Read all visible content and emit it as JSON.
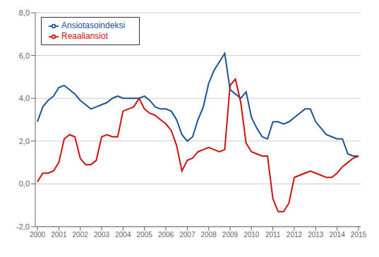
{
  "chart_data": {
    "type": "line",
    "x": [
      2000,
      2000.25,
      2000.5,
      2000.75,
      2001,
      2001.25,
      2001.5,
      2001.75,
      2002,
      2002.25,
      2002.5,
      2002.75,
      2003,
      2003.25,
      2003.5,
      2003.75,
      2004,
      2004.25,
      2004.5,
      2004.75,
      2005,
      2005.25,
      2005.5,
      2005.75,
      2006,
      2006.25,
      2006.5,
      2006.75,
      2007,
      2007.25,
      2007.5,
      2007.75,
      2008,
      2008.25,
      2008.5,
      2008.75,
      2009,
      2009.25,
      2009.5,
      2009.75,
      2010,
      2010.25,
      2010.5,
      2010.75,
      2011,
      2011.25,
      2011.5,
      2011.75,
      2012,
      2012.25,
      2012.5,
      2012.75,
      2013,
      2013.25,
      2013.5,
      2013.75,
      2014,
      2014.25,
      2014.5,
      2014.75,
      2015
    ],
    "xlim": [
      1999.9,
      2015.1
    ],
    "xticks": [
      2000,
      2001,
      2002,
      2003,
      2004,
      2005,
      2006,
      2007,
      2008,
      2009,
      2010,
      2011,
      2012,
      2013,
      2014,
      2015
    ],
    "ylim": [
      -2.0,
      8.0
    ],
    "yticks": [
      {
        "value": -2.0,
        "label": "-2,0"
      },
      {
        "value": 0.0,
        "label": "0,0"
      },
      {
        "value": 2.0,
        "label": "2,0"
      },
      {
        "value": 4.0,
        "label": "4,0"
      },
      {
        "value": 6.0,
        "label": "6,0"
      },
      {
        "value": 8.0,
        "label": "8,0"
      }
    ],
    "grid": "y",
    "legend": "upper left",
    "series": [
      {
        "name": "Ansiotasoindeksi",
        "color": "#1a5296",
        "values": [
          2.9,
          3.6,
          3.9,
          4.1,
          4.5,
          4.6,
          4.4,
          4.2,
          3.9,
          3.7,
          3.5,
          3.6,
          3.7,
          3.8,
          4.0,
          4.1,
          4.0,
          4.0,
          4.0,
          4.0,
          4.1,
          3.9,
          3.6,
          3.5,
          3.5,
          3.4,
          3.0,
          2.3,
          2.0,
          2.2,
          3.0,
          3.6,
          4.7,
          5.3,
          5.7,
          6.1,
          4.4,
          4.2,
          4.0,
          4.3,
          3.1,
          2.6,
          2.2,
          2.1,
          2.9,
          2.9,
          2.8,
          2.9,
          3.1,
          3.3,
          3.5,
          3.5,
          2.9,
          2.6,
          2.3,
          2.2,
          2.1,
          2.1,
          1.4,
          1.3,
          1.3
        ]
      },
      {
        "name": "Reaaliansiot",
        "color": "#cc1111",
        "values": [
          0.1,
          0.5,
          0.5,
          0.6,
          1.0,
          2.1,
          2.3,
          2.2,
          1.2,
          0.9,
          0.9,
          1.1,
          2.2,
          2.3,
          2.2,
          2.2,
          3.4,
          3.5,
          3.6,
          4.0,
          3.5,
          3.3,
          3.2,
          3.0,
          2.8,
          2.5,
          1.8,
          0.6,
          1.1,
          1.2,
          1.5,
          1.6,
          1.7,
          1.6,
          1.5,
          1.6,
          4.6,
          4.9,
          3.8,
          1.9,
          1.5,
          1.4,
          1.3,
          1.3,
          -0.7,
          -1.3,
          -1.3,
          -0.9,
          0.3,
          0.4,
          0.5,
          0.6,
          0.5,
          0.4,
          0.3,
          0.3,
          0.5,
          0.8,
          1.0,
          1.2,
          1.3
        ]
      }
    ]
  }
}
